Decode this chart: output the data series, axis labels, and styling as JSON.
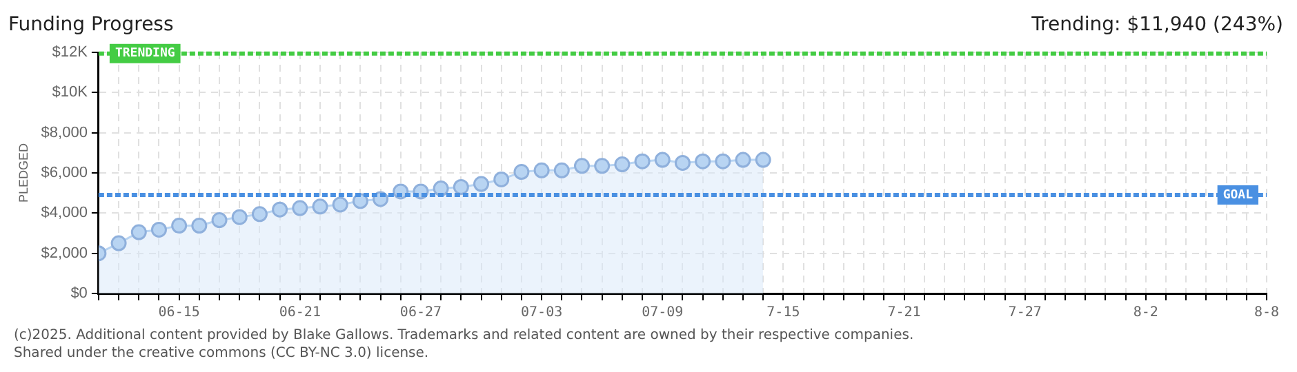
{
  "chart_data": {
    "type": "area",
    "title": "Funding Progress",
    "ylabel": "PLEDGED",
    "annotations": [
      "Trending:  $11,940 (243%)",
      "(c)2025. Additional content provided by Blake Gallows. Trademarks and related content are owned by their respective companies.",
      "Shared under the creative commons (CC BY-NC 3.0) license."
    ],
    "x": [
      "--06-11",
      "--06-12",
      "--06-13",
      "--06-14",
      "--06-15",
      "--06-16",
      "--06-17",
      "--06-18",
      "--06-19",
      "--06-20",
      "--06-21",
      "--06-22",
      "--06-23",
      "--06-24",
      "--06-25",
      "--06-26",
      "--06-27",
      "--06-28",
      "--06-29",
      "--06-30",
      "--07-01",
      "--07-02",
      "--07-03",
      "--07-04",
      "--07-05",
      "--07-06",
      "--07-07",
      "--07-08",
      "--07-09",
      "--07-10",
      "--07-11",
      "--07-12",
      "--07-13",
      "--07-14"
    ],
    "series": [
      {
        "color": "#b8d4f2",
        "values": [
          2000,
          2500,
          3050,
          3175,
          3375,
          3375,
          3650,
          3800,
          3950,
          4175,
          4250,
          4325,
          4425,
          4600,
          4700,
          5075,
          5075,
          5225,
          5300,
          5450,
          5675,
          6050,
          6125,
          6125,
          6350,
          6350,
          6425,
          6575,
          6650,
          6500,
          6575,
          6575,
          6650,
          6650
        ]
      }
    ],
    "xlim": [
      "--06-11",
      "--08-08"
    ],
    "xticks": [
      {
        "value": "--06-11",
        "label": null
      },
      {
        "value": "--06-12",
        "label": null
      },
      {
        "value": "--06-13",
        "label": null
      },
      {
        "value": "--06-14",
        "label": null
      },
      {
        "value": "--06-15",
        "label": "06-15"
      },
      {
        "value": "--06-16",
        "label": null
      },
      {
        "value": "--06-17",
        "label": null
      },
      {
        "value": "--06-18",
        "label": null
      },
      {
        "value": "--06-19",
        "label": null
      },
      {
        "value": "--06-20",
        "label": null
      },
      {
        "value": "--06-21",
        "label": "06-21"
      },
      {
        "value": "--06-22",
        "label": null
      },
      {
        "value": "--06-23",
        "label": null
      },
      {
        "value": "--06-24",
        "label": null
      },
      {
        "value": "--06-25",
        "label": null
      },
      {
        "value": "--06-26",
        "label": null
      },
      {
        "value": "--06-27",
        "label": "06-27"
      },
      {
        "value": "--06-28",
        "label": null
      },
      {
        "value": "--06-29",
        "label": null
      },
      {
        "value": "--06-30",
        "label": null
      },
      {
        "value": "--07-01",
        "label": null
      },
      {
        "value": "--07-02",
        "label": null
      },
      {
        "value": "--07-03",
        "label": "07-03"
      },
      {
        "value": "--07-04",
        "label": null
      },
      {
        "value": "--07-05",
        "label": null
      },
      {
        "value": "--07-06",
        "label": null
      },
      {
        "value": "--07-07",
        "label": null
      },
      {
        "value": "--07-08",
        "label": null
      },
      {
        "value": "--07-09",
        "label": "07-09"
      },
      {
        "value": "--07-10",
        "label": null
      },
      {
        "value": "--07-11",
        "label": null
      },
      {
        "value": "--07-12",
        "label": null
      },
      {
        "value": "--07-13",
        "label": null
      },
      {
        "value": "--07-14",
        "label": null
      },
      {
        "value": "--07-15",
        "label": "7-15"
      },
      {
        "value": "--07-16",
        "label": null
      },
      {
        "value": "--07-17",
        "label": null
      },
      {
        "value": "--07-18",
        "label": null
      },
      {
        "value": "--07-19",
        "label": null
      },
      {
        "value": "--07-20",
        "label": null
      },
      {
        "value": "--07-21",
        "label": "7-21"
      },
      {
        "value": "--07-22",
        "label": null
      },
      {
        "value": "--07-23",
        "label": null
      },
      {
        "value": "--07-24",
        "label": null
      },
      {
        "value": "--07-25",
        "label": null
      },
      {
        "value": "--07-26",
        "label": null
      },
      {
        "value": "--07-27",
        "label": "7-27"
      },
      {
        "value": "--07-28",
        "label": null
      },
      {
        "value": "--07-29",
        "label": null
      },
      {
        "value": "--07-30",
        "label": null
      },
      {
        "value": "--07-31",
        "label": null
      },
      {
        "value": "--08-01",
        "label": null
      },
      {
        "value": "--08-02",
        "label": "8-2"
      },
      {
        "value": "--08-03",
        "label": null
      },
      {
        "value": "--08-04",
        "label": null
      },
      {
        "value": "--08-05",
        "label": null
      },
      {
        "value": "--08-06",
        "label": null
      },
      {
        "value": "--08-07",
        "label": null
      },
      {
        "value": "--08-08",
        "label": "8-8"
      }
    ],
    "ylim": [
      0,
      12000
    ],
    "yticks": [
      {
        "value": 0,
        "label": "$0"
      },
      {
        "value": 2000,
        "label": "$2,000"
      },
      {
        "value": 4000,
        "label": "$4,000"
      },
      {
        "value": 6000,
        "label": "$6,000"
      },
      {
        "value": 8000,
        "label": "$8,000"
      },
      {
        "value": 10000,
        "label": "$10K"
      },
      {
        "value": 12000,
        "label": "$12K"
      }
    ],
    "ref_lines": [
      {
        "axis": "y",
        "value": 11940,
        "label": "TRENDING",
        "color": "#44cc44",
        "line_style": "dashed"
      },
      {
        "axis": "y",
        "value": 4900,
        "label": "GOAL",
        "color": "#4a90e2",
        "line_style": "dashed"
      }
    ],
    "grid": true,
    "legend": false,
    "marker": "circle",
    "line_style": "solid"
  }
}
